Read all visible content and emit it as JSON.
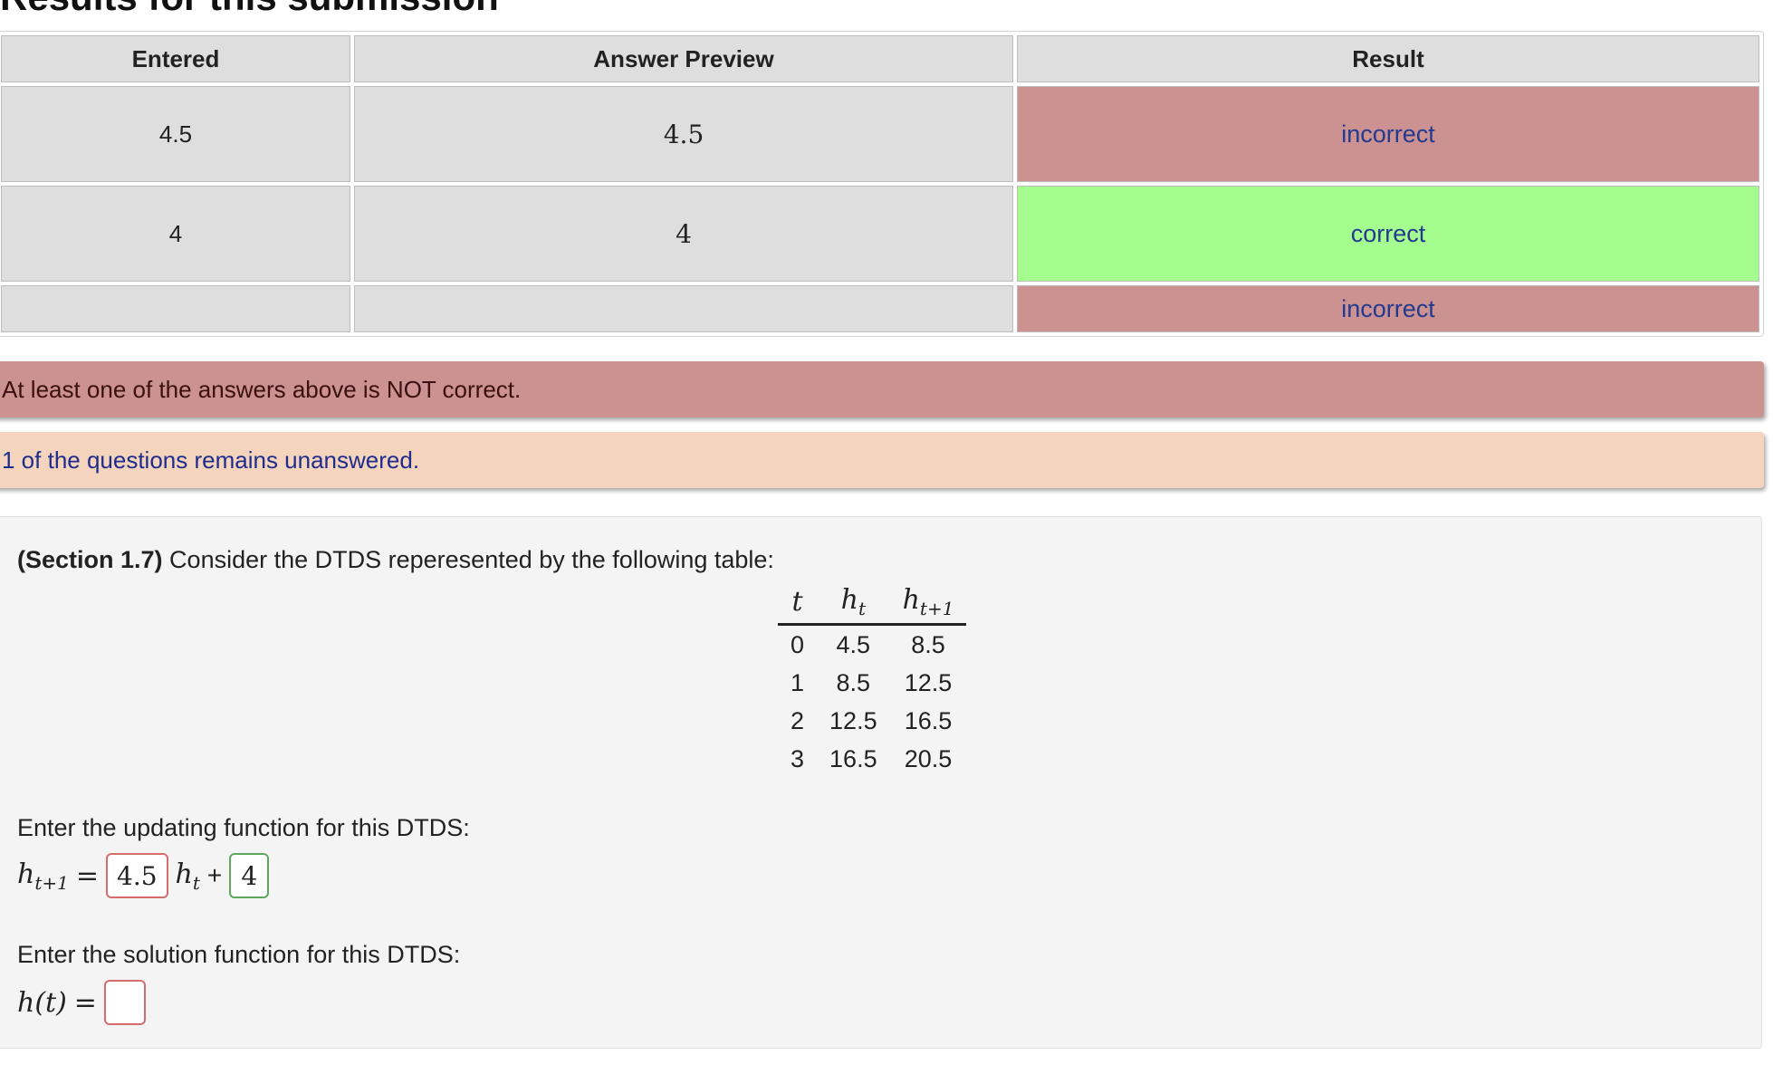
{
  "heading": "Results for this submission",
  "results_table": {
    "headers": [
      "Entered",
      "Answer Preview",
      "Result"
    ],
    "rows": [
      {
        "entered": "4.5",
        "preview": "4.5",
        "result": "incorrect",
        "status": "incorrect"
      },
      {
        "entered": "4",
        "preview": "4",
        "result": "correct",
        "status": "correct"
      },
      {
        "entered": "",
        "preview": "",
        "result": "incorrect",
        "status": "incorrect"
      }
    ]
  },
  "alerts": {
    "not_correct": "At least one of the answers above is NOT correct.",
    "unanswered": "1 of the questions remains unanswered."
  },
  "problem": {
    "section": "(Section 1.7)",
    "intro": " Consider the DTDS repe­resented by the following table:",
    "table": {
      "headers": {
        "t": "t",
        "ht": "h",
        "ht_sub": "t",
        "ht1": "h",
        "ht1_sub": "t+1"
      },
      "rows": [
        [
          "0",
          "4.5",
          "8.5"
        ],
        [
          "1",
          "8.5",
          "12.5"
        ],
        [
          "2",
          "12.5",
          "16.5"
        ],
        [
          "3",
          "16.5",
          "20.5"
        ]
      ]
    },
    "update_prompt": "Enter the updating function for this DTDS:",
    "update_eq": {
      "lhs": "h",
      "lhs_sub": "t+1",
      "eq": "=",
      "answer_a": "4.5",
      "mid": "h",
      "mid_sub": "t",
      "plus": "+",
      "answer_b": "4"
    },
    "solution_prompt": "Enter the solution function for this DTDS:",
    "solution_eq": {
      "lhs": "h(t)",
      "eq": "=",
      "answer": ""
    }
  },
  "colors": {
    "incorrect": "#cc9191",
    "correct": "#a6fd8f",
    "unanswered_bg": "#f4d4bc",
    "link_blue": "#233a8e"
  }
}
